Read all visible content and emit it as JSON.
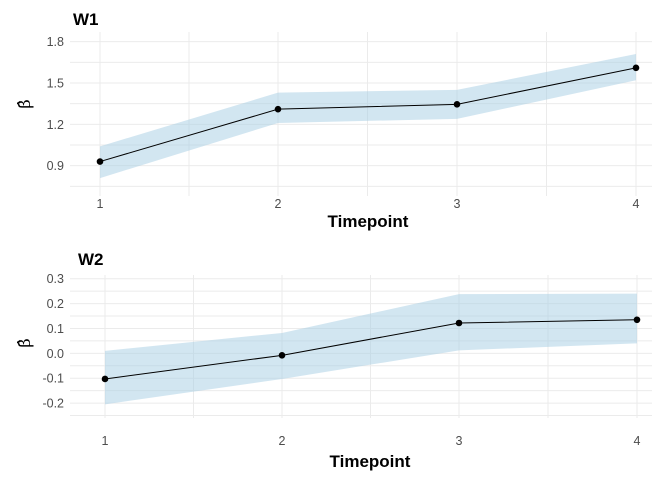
{
  "chart_data": [
    {
      "type": "line",
      "title": "W1",
      "xlabel": "Timepoint",
      "ylabel": "β̂",
      "x": [
        1,
        2,
        3,
        4
      ],
      "x_ticks": [
        "1",
        "2",
        "3",
        "4"
      ],
      "y_ticks": [
        0.9,
        1.2,
        1.5,
        1.8
      ],
      "y_tick_labels": [
        "0.9",
        "1.2",
        "1.5",
        "1.8"
      ],
      "ylim": [
        0.68,
        1.87
      ],
      "grid": true,
      "series": [
        {
          "values": [
            0.93,
            1.31,
            1.345,
            1.61
          ],
          "lower": [
            0.81,
            1.21,
            1.24,
            1.52
          ],
          "upper": [
            1.04,
            1.43,
            1.45,
            1.71
          ]
        }
      ],
      "colors": {
        "ribbon": "#a6cee3",
        "line": "#000000"
      }
    },
    {
      "type": "line",
      "title": "W2",
      "xlabel": "Timepoint",
      "ylabel": "β̂",
      "x": [
        1,
        2,
        3,
        4
      ],
      "x_ticks": [
        "1",
        "2",
        "3",
        "4"
      ],
      "y_ticks": [
        -0.2,
        -0.1,
        0.0,
        0.1,
        0.2,
        0.3
      ],
      "y_tick_labels": [
        "-0.2",
        "-0.1",
        "0.0",
        "0.1",
        "0.2",
        "0.3"
      ],
      "ylim": [
        -0.26,
        0.315
      ],
      "grid": true,
      "series": [
        {
          "values": [
            -0.103,
            -0.008,
            0.122,
            0.135
          ],
          "lower": [
            -0.205,
            -0.103,
            0.012,
            0.04
          ],
          "upper": [
            0.01,
            0.082,
            0.238,
            0.24
          ]
        }
      ],
      "colors": {
        "ribbon": "#a6cee3",
        "line": "#000000"
      }
    }
  ]
}
